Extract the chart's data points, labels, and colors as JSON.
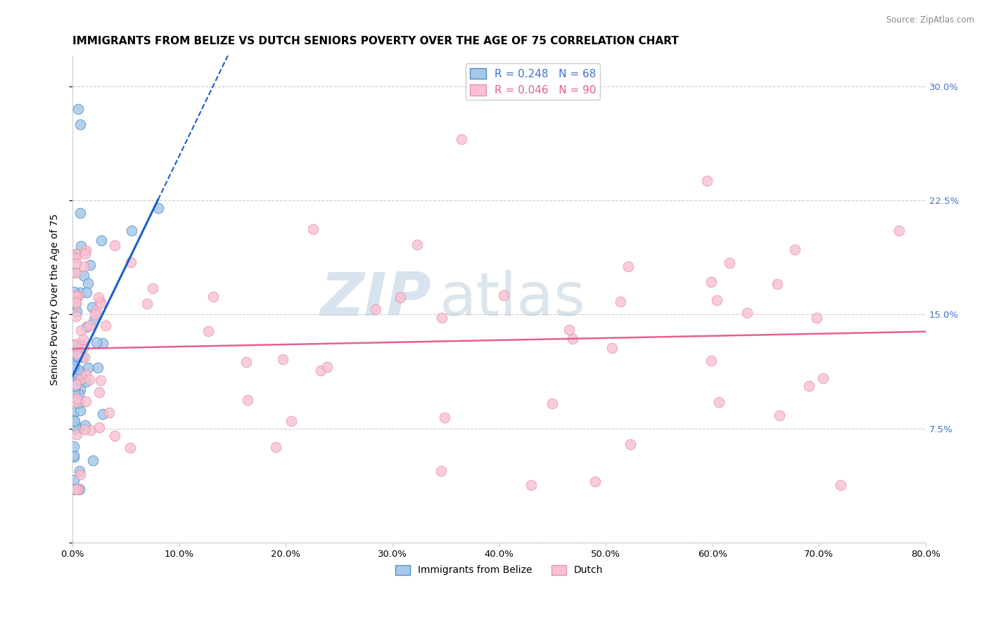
{
  "title": "IMMIGRANTS FROM BELIZE VS DUTCH SENIORS POVERTY OVER THE AGE OF 75 CORRELATION CHART",
  "source": "Source: ZipAtlas.com",
  "ylabel": "Seniors Poverty Over the Age of 75",
  "xlim": [
    0.0,
    0.8
  ],
  "ylim": [
    0.0,
    0.32
  ],
  "x_ticks": [
    0.0,
    0.1,
    0.2,
    0.3,
    0.4,
    0.5,
    0.6,
    0.7,
    0.8
  ],
  "y_ticks": [
    0.0,
    0.075,
    0.15,
    0.225,
    0.3
  ],
  "y_tick_labels_right": [
    "",
    "7.5%",
    "15.0%",
    "22.5%",
    "30.0%"
  ],
  "blue_R": 0.248,
  "blue_N": 68,
  "pink_R": 0.046,
  "pink_N": 90,
  "blue_line_color": "#1a5fc8",
  "pink_line_color": "#e8608a",
  "blue_scatter_facecolor": "#a8c8e8",
  "blue_scatter_edgecolor": "#5090c8",
  "pink_scatter_facecolor": "#f8c0d0",
  "pink_scatter_edgecolor": "#e890a8",
  "grid_color": "#cccccc",
  "watermark_zip": "ZIP",
  "watermark_atlas": "atlas",
  "title_fontsize": 11,
  "axis_label_fontsize": 10,
  "tick_fontsize": 9.5,
  "right_tick_color": "#4472c4"
}
